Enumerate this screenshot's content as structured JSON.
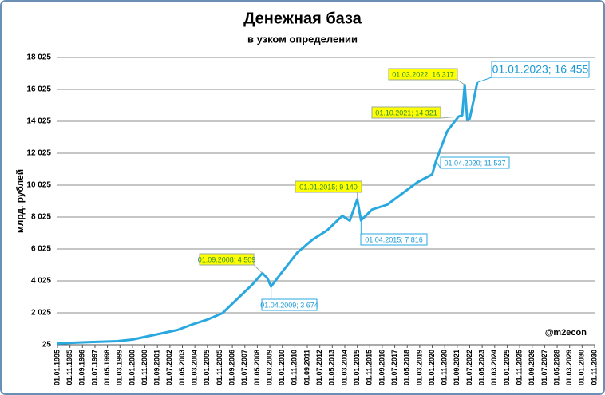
{
  "chart_data": {
    "type": "line",
    "title": "Денежная база",
    "subtitle": "в узком определении",
    "y_label": "млрд. рублей",
    "source": "@m2econ",
    "grid": true,
    "xlim": [
      "01.01.1995",
      "01.11.2030"
    ],
    "xticks": [
      "01.01.1995",
      "01.11.1995",
      "01.09.1996",
      "01.07.1997",
      "01.05.1998",
      "01.03.1999",
      "01.01.2000",
      "01.11.2000",
      "01.09.2001",
      "01.07.2002",
      "01.05.2003",
      "01.03.2004",
      "01.01.2005",
      "01.11.2005",
      "01.09.2006",
      "01.07.2007",
      "01.05.2008",
      "01.03.2009",
      "01.01.2010",
      "01.11.2010",
      "01.09.2011",
      "01.07.2012",
      "01.05.2013",
      "01.03.2014",
      "01.01.2015",
      "01.11.2015",
      "01.09.2016",
      "01.07.2017",
      "01.05.2018",
      "01.03.2019",
      "01.01.2020",
      "01.11.2020",
      "01.09.2021",
      "01.07.2022",
      "01.05.2023",
      "01.03.2024",
      "01.01.2025",
      "01.11.2025",
      "01.09.2026",
      "01.07.2027",
      "01.05.2028",
      "01.03.2029",
      "01.01.2030",
      "01.11.2030"
    ],
    "ylim": [
      25,
      18025
    ],
    "yticks": [
      25,
      {
        "value": 2025,
        "label": "2 025"
      },
      {
        "value": 4025,
        "label": "4 025"
      },
      {
        "value": 6025,
        "label": "6 025"
      },
      {
        "value": 8025,
        "label": "8 025"
      },
      {
        "value": 10025,
        "label": "10 025"
      },
      {
        "value": 12025,
        "label": "12 025"
      },
      {
        "value": 14025,
        "label": "14 025"
      },
      {
        "value": 16025,
        "label": "16 025"
      },
      {
        "value": 18025,
        "label": "18 025"
      }
    ],
    "series": [
      {
        "color": "#29a8e0",
        "x": [
          "01.01.1995",
          "01.01.1996",
          "01.01.1997",
          "01.01.1998",
          "01.01.1999",
          "01.01.2000",
          "01.01.2001",
          "01.01.2002",
          "01.01.2003",
          "01.01.2004",
          "01.01.2005",
          "01.01.2006",
          "01.01.2007",
          "01.01.2008",
          "01.09.2008",
          "01.01.2009",
          "01.04.2009",
          "01.01.2010",
          "01.01.2011",
          "01.01.2012",
          "01.01.2013",
          "01.01.2014",
          "01.07.2014",
          "01.01.2015",
          "01.04.2015",
          "01.01.2016",
          "01.01.2017",
          "01.01.2018",
          "01.01.2019",
          "01.01.2020",
          "01.04.2020",
          "01.01.2021",
          "01.10.2021",
          "01.01.2022",
          "01.03.2022",
          "01.05.2022",
          "01.07.2022",
          "01.10.2022",
          "01.01.2023"
        ],
        "values": [
          100,
          150,
          190,
          220,
          250,
          350,
          550,
          750,
          950,
          1300,
          1600,
          2000,
          2900,
          3800,
          4509,
          4200,
          3674,
          4600,
          5800,
          6600,
          7200,
          8100,
          7800,
          9140,
          7816,
          8500,
          8800,
          9500,
          10200,
          10700,
          11537,
          13400,
          14321,
          14400,
          16317,
          14100,
          14200,
          15300,
          16455
        ]
      }
    ],
    "annotations": [
      {
        "label": "01.09.2008; 4 509",
        "x": "01.09.2008",
        "y": 4509,
        "style": "highlight"
      },
      {
        "label": "01.04.2009; 3 674",
        "x": "01.04.2009",
        "y": 3674,
        "style": "outline"
      },
      {
        "label": "01.01.2015; 9 140",
        "x": "01.01.2015",
        "y": 9140,
        "style": "highlight"
      },
      {
        "label": "01.04.2015; 7 816",
        "x": "01.04.2015",
        "y": 7816,
        "style": "outline"
      },
      {
        "label": "01.10.2021; 14 321",
        "x": "01.10.2021",
        "y": 14321,
        "style": "highlight"
      },
      {
        "label": "01.03.2022; 16 317",
        "x": "01.03.2022",
        "y": 16317,
        "style": "highlight"
      },
      {
        "label": "01.04.2020; 11 537",
        "x": "01.04.2020",
        "y": 11537,
        "style": "outline"
      },
      {
        "label": "01.01.2023; 16 455",
        "x": "01.01.2023",
        "y": 16455,
        "style": "outline-large"
      }
    ]
  }
}
